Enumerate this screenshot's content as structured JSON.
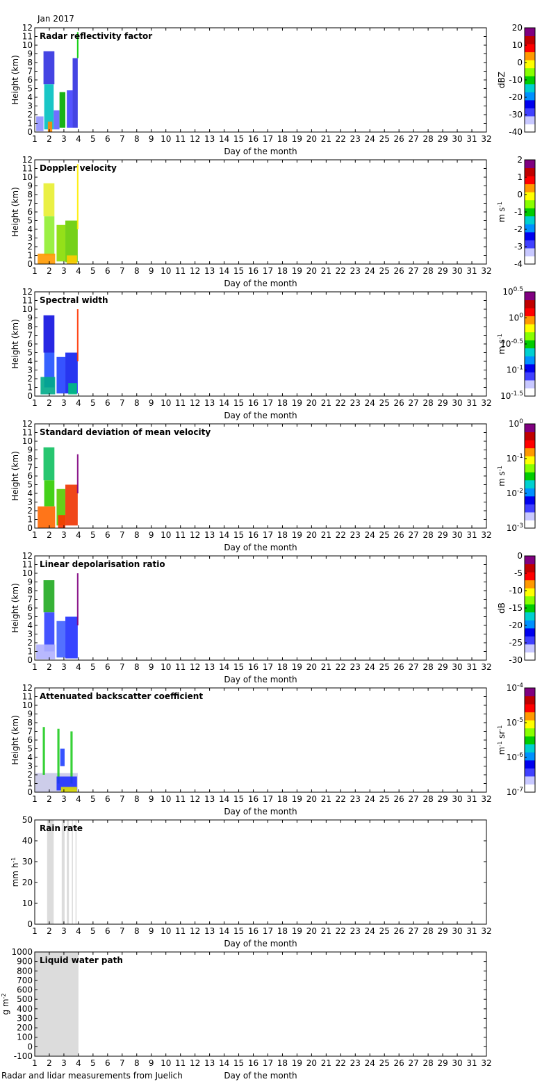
{
  "header": {
    "month": "Jan 2017"
  },
  "footer": {
    "source": "Radar and lidar measurements from Juelich"
  },
  "colorbar_colors": [
    "#ffffff",
    "#c8c8ff",
    "#4040ff",
    "#0000ee",
    "#0090ff",
    "#00d0d0",
    "#00cc00",
    "#88ff00",
    "#ffff00",
    "#ff9900",
    "#ff0000",
    "#c00000",
    "#800080"
  ],
  "chart_data": [
    {
      "type": "heatmap",
      "title": "Radar reflectivity factor",
      "xlabel": "Day of the month",
      "ylabel": "Height (km)",
      "xlim": [
        1,
        32
      ],
      "ylim": [
        0,
        12
      ],
      "xticks": [
        1,
        2,
        3,
        4,
        5,
        6,
        7,
        8,
        9,
        10,
        11,
        12,
        13,
        14,
        15,
        16,
        17,
        18,
        19,
        20,
        21,
        22,
        23,
        24,
        25,
        26,
        27,
        28,
        29,
        30,
        31,
        32
      ],
      "yticks": [
        0,
        1,
        2,
        3,
        4,
        5,
        6,
        7,
        8,
        9,
        10,
        11,
        12
      ],
      "colorbar": {
        "label": "dBZ",
        "range": [
          -40,
          20
        ],
        "ticks": [
          "20",
          "10",
          "0",
          "-10",
          "-20",
          "-30",
          "-40"
        ]
      },
      "regions": [
        {
          "x": [
            1.6,
            2.35
          ],
          "y": [
            5.5,
            9.3
          ],
          "color": "#3030e0"
        },
        {
          "x": [
            1.65,
            2.3
          ],
          "y": [
            0.3,
            5.5
          ],
          "color": "#00c0c0"
        },
        {
          "x": [
            1.1,
            1.6
          ],
          "y": [
            0.1,
            1.8
          ],
          "color": "#9090ff"
        },
        {
          "x": [
            1.9,
            2.2
          ],
          "y": [
            0.0,
            1.2
          ],
          "color": "#ff8800"
        },
        {
          "x": [
            2.3,
            2.7
          ],
          "y": [
            0.3,
            2.5
          ],
          "color": "#6060ff"
        },
        {
          "x": [
            2.7,
            3.1
          ],
          "y": [
            0.5,
            4.6
          ],
          "color": "#00aa00"
        },
        {
          "x": [
            3.2,
            3.6
          ],
          "y": [
            0.5,
            4.8
          ],
          "color": "#4040ff"
        },
        {
          "x": [
            3.6,
            3.95
          ],
          "y": [
            0.5,
            8.5
          ],
          "color": "#3030e0"
        },
        {
          "x": [
            3.9,
            4.0
          ],
          "y": [
            8.5,
            11.5
          ],
          "color": "#00cc00"
        }
      ]
    },
    {
      "type": "heatmap",
      "title": "Doppler velocity",
      "xlabel": "Day of the month",
      "ylabel": "Height (km)",
      "xlim": [
        1,
        32
      ],
      "ylim": [
        0,
        12
      ],
      "xticks": [
        1,
        2,
        3,
        4,
        5,
        6,
        7,
        8,
        9,
        10,
        11,
        12,
        13,
        14,
        15,
        16,
        17,
        18,
        19,
        20,
        21,
        22,
        23,
        24,
        25,
        26,
        27,
        28,
        29,
        30,
        31,
        32
      ],
      "yticks": [
        0,
        1,
        2,
        3,
        4,
        5,
        6,
        7,
        8,
        9,
        10,
        11,
        12
      ],
      "colorbar": {
        "label": "m s⁻¹",
        "range": [
          -4,
          2
        ],
        "ticks": [
          "2",
          "1",
          "0",
          "-1",
          "-2",
          "-3",
          "-4"
        ]
      },
      "regions": [
        {
          "x": [
            1.6,
            2.35
          ],
          "y": [
            5.5,
            9.3
          ],
          "color": "#e8ee30"
        },
        {
          "x": [
            1.65,
            2.35
          ],
          "y": [
            1.0,
            5.5
          ],
          "color": "#90ee30"
        },
        {
          "x": [
            1.2,
            2.4
          ],
          "y": [
            0.0,
            1.2
          ],
          "color": "#ff9900"
        },
        {
          "x": [
            2.5,
            3.1
          ],
          "y": [
            0.3,
            4.5
          ],
          "color": "#88dd00"
        },
        {
          "x": [
            3.1,
            3.95
          ],
          "y": [
            0.2,
            5.0
          ],
          "color": "#66cc00"
        },
        {
          "x": [
            3.2,
            3.9
          ],
          "y": [
            0.0,
            1.0
          ],
          "color": "#ffcc00"
        },
        {
          "x": [
            3.9,
            4.0
          ],
          "y": [
            4.0,
            11.5
          ],
          "color": "#ffee00"
        }
      ]
    },
    {
      "type": "heatmap",
      "title": "Spectral width",
      "xlabel": "Day of the month",
      "ylabel": "Height (km)",
      "xlim": [
        1,
        32
      ],
      "ylim": [
        0,
        12
      ],
      "xticks": [
        1,
        2,
        3,
        4,
        5,
        6,
        7,
        8,
        9,
        10,
        11,
        12,
        13,
        14,
        15,
        16,
        17,
        18,
        19,
        20,
        21,
        22,
        23,
        24,
        25,
        26,
        27,
        28,
        29,
        30,
        31,
        32
      ],
      "yticks": [
        0,
        1,
        2,
        3,
        4,
        5,
        6,
        7,
        8,
        9,
        10,
        11,
        12
      ],
      "colorbar": {
        "label": "m s⁻¹",
        "range": [
          -1.5,
          0.5
        ],
        "log": true,
        "ticks": [
          "10^0.5",
          "10^0",
          "10^-0.5",
          "10^-1",
          "10^-1.5"
        ]
      },
      "regions": [
        {
          "x": [
            1.6,
            2.35
          ],
          "y": [
            5.0,
            9.3
          ],
          "color": "#1010e0"
        },
        {
          "x": [
            1.65,
            2.35
          ],
          "y": [
            1.0,
            5.0
          ],
          "color": "#2050ff"
        },
        {
          "x": [
            1.4,
            2.4
          ],
          "y": [
            0.2,
            2.2
          ],
          "color": "#00aa88"
        },
        {
          "x": [
            2.5,
            3.1
          ],
          "y": [
            0.3,
            4.5
          ],
          "color": "#2040ff"
        },
        {
          "x": [
            3.1,
            3.95
          ],
          "y": [
            0.3,
            5.0
          ],
          "color": "#1020ee"
        },
        {
          "x": [
            3.3,
            3.9
          ],
          "y": [
            0.2,
            1.5
          ],
          "color": "#00c080"
        },
        {
          "x": [
            3.9,
            4.0
          ],
          "y": [
            4.0,
            10.0
          ],
          "color": "#ff3300"
        }
      ]
    },
    {
      "type": "heatmap",
      "title": "Standard deviation of mean velocity",
      "xlabel": "Day of the month",
      "ylabel": "Height (km)",
      "xlim": [
        1,
        32
      ],
      "ylim": [
        0,
        12
      ],
      "xticks": [
        1,
        2,
        3,
        4,
        5,
        6,
        7,
        8,
        9,
        10,
        11,
        12,
        13,
        14,
        15,
        16,
        17,
        18,
        19,
        20,
        21,
        22,
        23,
        24,
        25,
        26,
        27,
        28,
        29,
        30,
        31,
        32
      ],
      "yticks": [
        0,
        1,
        2,
        3,
        4,
        5,
        6,
        7,
        8,
        9,
        10,
        11,
        12
      ],
      "colorbar": {
        "label": "m s⁻¹",
        "range": [
          -3,
          0
        ],
        "log": true,
        "ticks": [
          "10^0",
          "10^-1",
          "10^-2",
          "10^-3"
        ]
      },
      "regions": [
        {
          "x": [
            1.6,
            2.35
          ],
          "y": [
            5.5,
            9.3
          ],
          "color": "#10c060"
        },
        {
          "x": [
            1.65,
            2.35
          ],
          "y": [
            2.5,
            5.5
          ],
          "color": "#30cc00"
        },
        {
          "x": [
            1.2,
            2.4
          ],
          "y": [
            0.0,
            2.5
          ],
          "color": "#ff6600"
        },
        {
          "x": [
            2.5,
            3.1
          ],
          "y": [
            0.3,
            4.5
          ],
          "color": "#55cc00"
        },
        {
          "x": [
            2.6,
            3.1
          ],
          "y": [
            0.0,
            1.5
          ],
          "color": "#ff3300"
        },
        {
          "x": [
            3.1,
            3.95
          ],
          "y": [
            0.3,
            5.0
          ],
          "color": "#ee3300"
        },
        {
          "x": [
            3.9,
            4.0
          ],
          "y": [
            4.0,
            8.5
          ],
          "color": "#800080"
        }
      ]
    },
    {
      "type": "heatmap",
      "title": "Linear depolarisation ratio",
      "xlabel": "Day of the month",
      "ylabel": "Height (km)",
      "xlim": [
        1,
        32
      ],
      "ylim": [
        0,
        12
      ],
      "xticks": [
        1,
        2,
        3,
        4,
        5,
        6,
        7,
        8,
        9,
        10,
        11,
        12,
        13,
        14,
        15,
        16,
        17,
        18,
        19,
        20,
        21,
        22,
        23,
        24,
        25,
        26,
        27,
        28,
        29,
        30,
        31,
        32
      ],
      "yticks": [
        0,
        1,
        2,
        3,
        4,
        5,
        6,
        7,
        8,
        9,
        10,
        11,
        12
      ],
      "colorbar": {
        "label": "dB",
        "range": [
          -30,
          0
        ],
        "ticks": [
          "0",
          "-5",
          "-10",
          "-15",
          "-20",
          "-25",
          "-30"
        ]
      },
      "regions": [
        {
          "x": [
            1.6,
            2.35
          ],
          "y": [
            5.5,
            9.2
          ],
          "color": "#20aa20"
        },
        {
          "x": [
            1.65,
            2.35
          ],
          "y": [
            1.0,
            5.5
          ],
          "color": "#3040ff"
        },
        {
          "x": [
            1.1,
            2.4
          ],
          "y": [
            0.1,
            1.8
          ],
          "color": "#b0b0ff"
        },
        {
          "x": [
            2.5,
            3.1
          ],
          "y": [
            0.3,
            4.5
          ],
          "color": "#4060ff"
        },
        {
          "x": [
            3.1,
            3.95
          ],
          "y": [
            0.2,
            5.0
          ],
          "color": "#2030ff"
        },
        {
          "x": [
            3.9,
            4.0
          ],
          "y": [
            4.0,
            10.0
          ],
          "color": "#800080"
        }
      ]
    },
    {
      "type": "heatmap",
      "title": "Attenuated backscatter coefficient",
      "xlabel": "Day of the month",
      "ylabel": "Height (km)",
      "xlim": [
        1,
        32
      ],
      "ylim": [
        0,
        12
      ],
      "xticks": [
        1,
        2,
        3,
        4,
        5,
        6,
        7,
        8,
        9,
        10,
        11,
        12,
        13,
        14,
        15,
        16,
        17,
        18,
        19,
        20,
        21,
        22,
        23,
        24,
        25,
        26,
        27,
        28,
        29,
        30,
        31,
        32
      ],
      "yticks": [
        0,
        1,
        2,
        3,
        4,
        5,
        6,
        7,
        8,
        9,
        10,
        11,
        12
      ],
      "colorbar": {
        "label": "m⁻¹ sr⁻¹",
        "range": [
          -7,
          -4
        ],
        "log": true,
        "ticks": [
          "10^-4",
          "10^-5",
          "10^-6",
          "10^-7"
        ]
      },
      "regions": [
        {
          "x": [
            1.05,
            3.95
          ],
          "y": [
            0.0,
            2.2
          ],
          "color": "#c8c8e8"
        },
        {
          "x": [
            1.55,
            1.7
          ],
          "y": [
            2.0,
            7.5
          ],
          "color": "#20cc20"
        },
        {
          "x": [
            2.55,
            2.7
          ],
          "y": [
            1.0,
            7.3
          ],
          "color": "#20cc20"
        },
        {
          "x": [
            2.75,
            3.05
          ],
          "y": [
            3.0,
            5.0
          ],
          "color": "#2040ff"
        },
        {
          "x": [
            3.45,
            3.6
          ],
          "y": [
            1.0,
            7.0
          ],
          "color": "#20cc20"
        },
        {
          "x": [
            2.5,
            3.9
          ],
          "y": [
            0.2,
            1.8
          ],
          "color": "#2030ff"
        },
        {
          "x": [
            2.8,
            3.9
          ],
          "y": [
            0.0,
            0.6
          ],
          "color": "#e0e000"
        }
      ]
    },
    {
      "type": "bar",
      "title": "Rain rate",
      "xlabel": "Day of the month",
      "ylabel": "mm h⁻¹",
      "xlim": [
        1,
        32
      ],
      "ylim": [
        0,
        50
      ],
      "xticks": [
        1,
        2,
        3,
        4,
        5,
        6,
        7,
        8,
        9,
        10,
        11,
        12,
        13,
        14,
        15,
        16,
        17,
        18,
        19,
        20,
        21,
        22,
        23,
        24,
        25,
        26,
        27,
        28,
        29,
        30,
        31,
        32
      ],
      "yticks": [
        0,
        10,
        20,
        30,
        40,
        50
      ],
      "shaded_periods": [
        [
          1.85,
          2.3
        ],
        [
          2.85,
          3.05
        ],
        [
          3.2,
          3.35
        ],
        [
          3.55,
          3.62
        ],
        [
          3.8,
          3.87
        ]
      ]
    },
    {
      "type": "bar",
      "title": "Liquid water path",
      "xlabel": "Day of the month",
      "ylabel": "g m⁻²",
      "xlim": [
        1,
        32
      ],
      "ylim": [
        -100,
        1000
      ],
      "xticks": [
        1,
        2,
        3,
        4,
        5,
        6,
        7,
        8,
        9,
        10,
        11,
        12,
        13,
        14,
        15,
        16,
        17,
        18,
        19,
        20,
        21,
        22,
        23,
        24,
        25,
        26,
        27,
        28,
        29,
        30,
        31,
        32
      ],
      "yticks": [
        -100,
        0,
        100,
        200,
        300,
        400,
        500,
        600,
        700,
        800,
        900,
        1000
      ],
      "shaded_periods": [
        [
          1.0,
          4.0
        ]
      ]
    }
  ]
}
